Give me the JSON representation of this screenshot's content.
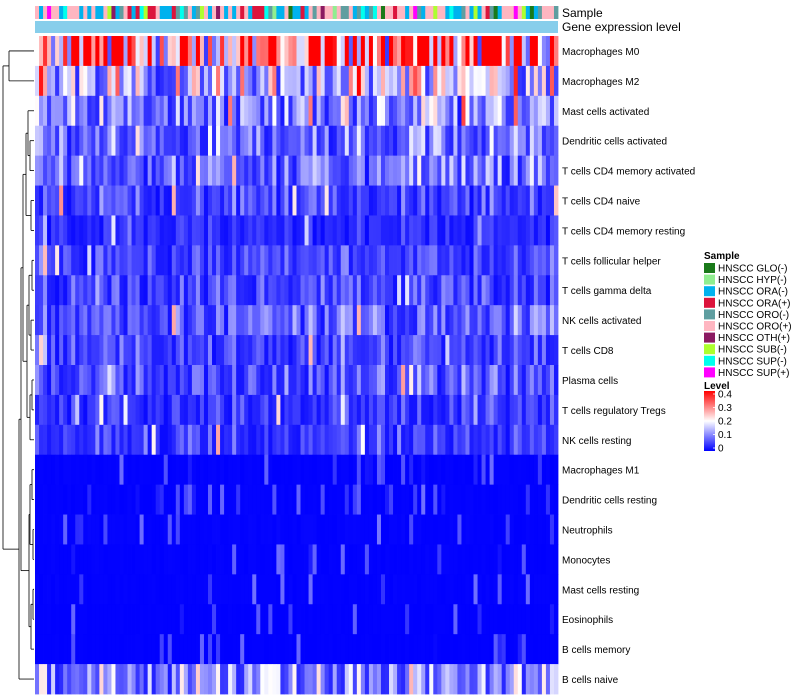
{
  "chart_data": {
    "type": "heatmap",
    "title": "",
    "annotation_labels": {
      "sample": "Sample",
      "expression": "Gene expression level"
    },
    "rows": [
      "Macrophages M0",
      "Macrophages M2",
      "Mast cells activated",
      "Dendritic cells activated",
      "T cells CD4 memory activated",
      "T cells CD4 naive",
      "T cells CD4 memory resting",
      "T cells follicular helper",
      "T cells gamma delta",
      "NK cells activated",
      "T cells CD8",
      "Plasma cells",
      "T cells regulatory  Tregs",
      "NK cells resting",
      "Macrophages M1",
      "Dendritic cells resting",
      "Neutrophils",
      "Monocytes",
      "Mast cells resting",
      "Eosinophils",
      "B cells memory",
      "B cells naive"
    ],
    "row_mean_level": [
      0.3,
      0.16,
      0.1,
      0.08,
      0.08,
      0.05,
      0.03,
      0.05,
      0.05,
      0.07,
      0.05,
      0.06,
      0.04,
      0.04,
      0.01,
      0.01,
      0.015,
      0.01,
      0.01,
      0.005,
      0.005,
      0.1
    ],
    "n_samples": 130,
    "value_range": [
      0,
      0.4
    ],
    "sample_legend": {
      "title": "Sample",
      "entries": [
        {
          "label": "HNSCC GLO(-)",
          "color": "#1a7a1a"
        },
        {
          "label": "HNSCC HYP(-)",
          "color": "#90ee90"
        },
        {
          "label": "HNSCC ORA(-)",
          "color": "#00b2ee"
        },
        {
          "label": "HNSCC ORA(+)",
          "color": "#dc143c"
        },
        {
          "label": "HNSCC ORO(-)",
          "color": "#5f9ea0"
        },
        {
          "label": "HNSCC ORO(+)",
          "color": "#ffb6c1"
        },
        {
          "label": "HNSCC OTH(+)",
          "color": "#8b1a62"
        },
        {
          "label": "HNSCC SUB(-)",
          "color": "#adff2f"
        },
        {
          "label": "HNSCC SUP(-)",
          "color": "#00ffee"
        },
        {
          "label": "HNSCC SUP(+)",
          "color": "#ff00ff"
        }
      ]
    },
    "level_legend": {
      "title": "Level",
      "ticks": [
        "0.4",
        "0.3",
        "0.2",
        "0.1",
        "0"
      ],
      "tick_values": [
        0.4,
        0.3,
        0.2,
        0.1,
        0
      ],
      "colors": {
        "low": "#0000ff",
        "mid": "#ffffff",
        "high": "#ff0000"
      }
    },
    "expression_bar_color": "#87ceeb"
  }
}
